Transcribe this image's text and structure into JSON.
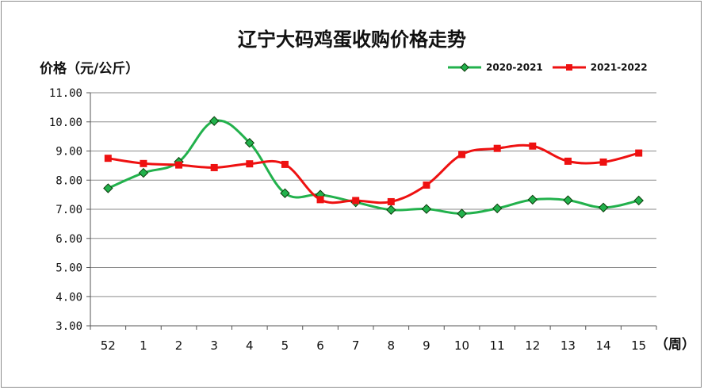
{
  "chart_data": {
    "type": "line",
    "title": "辽宁大码鸡蛋收购价格走势",
    "ylabel": "价格（元/公斤）",
    "xunit": "（周）",
    "categories": [
      "52",
      "1",
      "2",
      "3",
      "4",
      "5",
      "6",
      "7",
      "8",
      "9",
      "10",
      "11",
      "12",
      "13",
      "14",
      "15"
    ],
    "ylim": [
      3.0,
      11.0
    ],
    "yticks": [
      "3.00",
      "4.00",
      "5.00",
      "6.00",
      "7.00",
      "8.00",
      "9.00",
      "10.00",
      "11.00"
    ],
    "grid": true,
    "legend_position": "top-right",
    "series": [
      {
        "name": "2020-2021",
        "color": "#22b14c",
        "marker": "diamond",
        "values": [
          7.72,
          8.25,
          8.63,
          10.03,
          9.28,
          7.55,
          7.5,
          7.24,
          6.98,
          7.01,
          6.85,
          7.03,
          7.33,
          7.31,
          7.06,
          7.3
        ]
      },
      {
        "name": "2021-2022",
        "color": "#ee1111",
        "marker": "square",
        "values": [
          8.75,
          8.57,
          8.52,
          8.43,
          8.56,
          8.54,
          7.33,
          7.3,
          7.26,
          7.83,
          8.88,
          9.09,
          9.17,
          8.65,
          8.62,
          8.93
        ]
      }
    ]
  }
}
